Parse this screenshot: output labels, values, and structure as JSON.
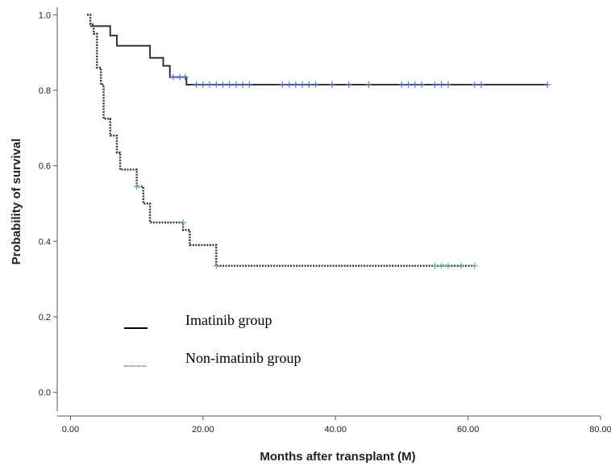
{
  "chart_data": {
    "type": "line",
    "subtype": "kaplan-meier step curve",
    "xlabel": "Months after transplant (M)",
    "ylabel": "Probability of survival",
    "xlim": [
      -2,
      80
    ],
    "ylim": [
      -0.05,
      1.02
    ],
    "x_ticks": [
      "0.00",
      "20.00",
      "40.00",
      "60.00",
      "80.00"
    ],
    "x_tick_values": [
      0,
      20,
      40,
      60,
      80
    ],
    "y_ticks": [
      "0.0",
      "0.2",
      "0.4",
      "0.6",
      "0.8",
      "1.0"
    ],
    "y_tick_values": [
      0,
      0.2,
      0.4,
      0.6,
      0.8,
      1.0
    ],
    "grid": false,
    "legend_position": "lower-left",
    "series": [
      {
        "name": "Imatinib group",
        "line_style": "solid",
        "color": "#333333",
        "censor_color": "#5b78c9",
        "steps": [
          [
            3,
            0.97
          ],
          [
            6,
            0.945
          ],
          [
            7,
            0.918
          ],
          [
            12,
            0.886
          ],
          [
            14,
            0.865
          ],
          [
            15,
            0.835
          ],
          [
            17.5,
            0.815
          ],
          [
            72,
            0.815
          ]
        ],
        "censored": [
          [
            15.5,
            0.835
          ],
          [
            16.5,
            0.835
          ],
          [
            17.3,
            0.835
          ],
          [
            19,
            0.815
          ],
          [
            20,
            0.815
          ],
          [
            21,
            0.815
          ],
          [
            22,
            0.815
          ],
          [
            23,
            0.815
          ],
          [
            24,
            0.815
          ],
          [
            25,
            0.815
          ],
          [
            26,
            0.815
          ],
          [
            27,
            0.815
          ],
          [
            32,
            0.815
          ],
          [
            33,
            0.815
          ],
          [
            34,
            0.815
          ],
          [
            35,
            0.815
          ],
          [
            36,
            0.815
          ],
          [
            37,
            0.815
          ],
          [
            39.5,
            0.815
          ],
          [
            42,
            0.815
          ],
          [
            45,
            0.815
          ],
          [
            50,
            0.815
          ],
          [
            51,
            0.815
          ],
          [
            52,
            0.815
          ],
          [
            53,
            0.815
          ],
          [
            55,
            0.815
          ],
          [
            56,
            0.815
          ],
          [
            57,
            0.815
          ],
          [
            61,
            0.815
          ],
          [
            62,
            0.815
          ],
          [
            72,
            0.815
          ]
        ]
      },
      {
        "name": "Non-imatinib group",
        "line_style": "dotted",
        "color": "#333333",
        "censor_color": "#5fbf7a",
        "steps": [
          [
            2.5,
            1.0
          ],
          [
            3,
            0.975
          ],
          [
            3.5,
            0.95
          ],
          [
            4,
            0.86
          ],
          [
            4.6,
            0.815
          ],
          [
            5,
            0.725
          ],
          [
            6,
            0.68
          ],
          [
            7,
            0.635
          ],
          [
            7.5,
            0.59
          ],
          [
            10,
            0.545
          ],
          [
            11,
            0.5
          ],
          [
            12,
            0.45
          ],
          [
            17,
            0.43
          ],
          [
            18,
            0.39
          ],
          [
            22,
            0.335
          ],
          [
            61,
            0.335
          ]
        ],
        "censored": [
          [
            10,
            0.545
          ],
          [
            17,
            0.45
          ],
          [
            22,
            0.335
          ],
          [
            55,
            0.335
          ],
          [
            56,
            0.335
          ],
          [
            57,
            0.335
          ],
          [
            59,
            0.335
          ],
          [
            61,
            0.335
          ]
        ]
      }
    ]
  }
}
